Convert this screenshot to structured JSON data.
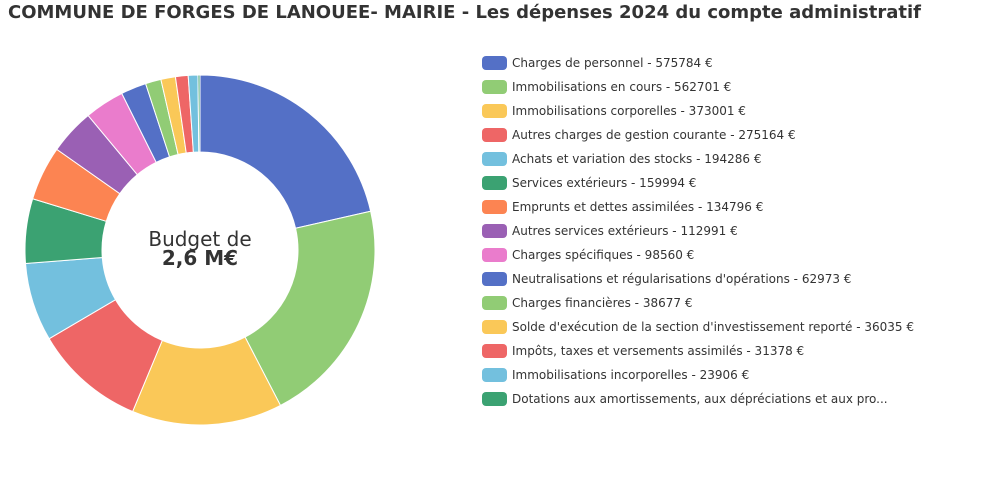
{
  "title": "COMMUNE DE FORGES DE LANOUEE- MAIRIE - Les dépenses 2024 du compte administratif",
  "center": {
    "line1": "Budget de",
    "line2": "2,6 M€"
  },
  "chart_data": {
    "type": "pie",
    "variant": "donut",
    "legend_position": "right",
    "slices": [
      {
        "label": "Charges de personnel - 575784 €",
        "name": "Charges de personnel",
        "value": 575784,
        "color": "#5470c6"
      },
      {
        "label": "Immobilisations en cours - 562701 €",
        "name": "Immobilisations en cours",
        "value": 562701,
        "color": "#91cc75"
      },
      {
        "label": "Immobilisations corporelles - 373001 €",
        "name": "Immobilisations corporelles",
        "value": 373001,
        "color": "#fac858"
      },
      {
        "label": "Autres charges de gestion courante - 275164 €",
        "name": "Autres charges de gestion courante",
        "value": 275164,
        "color": "#ee6666"
      },
      {
        "label": "Achats et variation des stocks - 194286 €",
        "name": "Achats et variation des stocks",
        "value": 194286,
        "color": "#73c0de"
      },
      {
        "label": "Services extérieurs - 159994 €",
        "name": "Services extérieurs",
        "value": 159994,
        "color": "#3ba272"
      },
      {
        "label": "Emprunts et dettes assimilées - 134796 €",
        "name": "Emprunts et dettes assimilées",
        "value": 134796,
        "color": "#fc8452"
      },
      {
        "label": "Autres services extérieurs - 112991 €",
        "name": "Autres services extérieurs",
        "value": 112991,
        "color": "#9a60b4"
      },
      {
        "label": "Charges spécifiques - 98560 €",
        "name": "Charges spécifiques",
        "value": 98560,
        "color": "#ea7ccc"
      },
      {
        "label": "Neutralisations et régularisations d'opérations - 62973 €",
        "name": "Neutralisations et régularisations d'opérations",
        "value": 62973,
        "color": "#5470c6"
      },
      {
        "label": "Charges financières - 38677 €",
        "name": "Charges financières",
        "value": 38677,
        "color": "#91cc75"
      },
      {
        "label": "Solde d'exécution de la section d'investissement reporté - 36035 €",
        "name": "Solde d'exécution de la section d'investissement reporté",
        "value": 36035,
        "color": "#fac858"
      },
      {
        "label": "Impôts, taxes et versements assimilés - 31378 €",
        "name": "Impôts, taxes et versements assimilés",
        "value": 31378,
        "color": "#ee6666"
      },
      {
        "label": "Immobilisations incorporelles - 23906 €",
        "name": "Immobilisations incorporelles",
        "value": 23906,
        "color": "#73c0de"
      },
      {
        "label": "Dotations aux amortissements, aux dépréciations et aux pro...",
        "name": "Dotations aux amortissements, aux dépréciations et aux pro...",
        "value": 5000,
        "color": "#3ba272"
      }
    ]
  }
}
